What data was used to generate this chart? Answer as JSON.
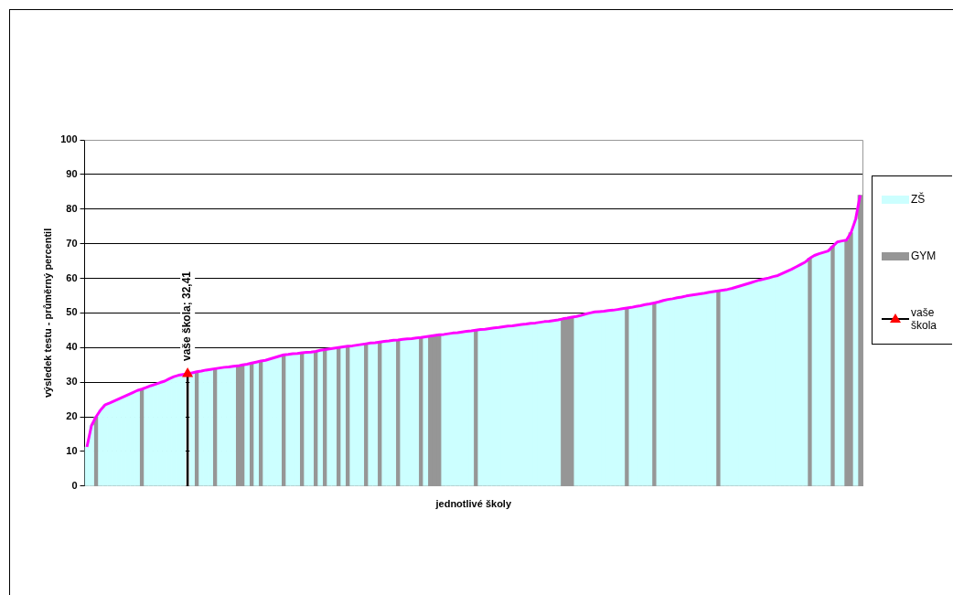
{
  "chart_data": {
    "type": "bar",
    "xlabel": "jednotlivé školy",
    "ylabel": "výsledek testu - průměrný percentil",
    "categories": [
      null,
      null,
      null,
      null,
      null,
      null,
      null,
      null,
      null,
      null,
      null,
      null,
      null,
      null,
      null,
      null,
      null,
      null,
      null,
      null,
      null,
      null,
      null,
      null,
      null,
      null,
      null,
      null,
      null,
      null,
      null,
      null,
      null,
      null,
      null,
      null,
      null,
      null,
      null,
      null,
      null,
      null,
      null,
      null,
      null,
      null,
      null,
      null,
      null,
      null,
      null,
      null,
      null,
      null,
      null,
      null,
      null,
      null,
      null,
      null,
      null,
      null,
      null,
      null,
      null,
      null,
      null,
      null,
      null,
      null,
      null,
      null,
      null,
      null,
      null,
      null,
      null,
      null,
      null,
      null,
      null,
      null,
      null,
      null,
      null,
      null,
      null,
      null,
      null,
      null,
      null,
      null,
      null,
      null,
      null,
      null,
      null,
      null,
      null,
      null,
      null,
      null,
      null,
      null,
      null,
      null,
      null,
      null,
      null,
      null,
      null,
      null,
      null,
      null,
      null,
      null,
      null,
      null,
      null,
      null,
      null,
      null,
      null,
      null,
      null,
      null,
      null,
      null,
      null,
      null,
      null,
      null,
      null,
      null,
      null,
      null,
      null,
      null,
      null,
      null,
      null,
      null,
      null,
      null,
      null,
      null,
      null,
      null,
      null,
      null,
      null,
      null,
      null,
      null,
      null,
      null,
      null,
      null,
      null,
      null,
      null,
      null,
      null,
      null,
      null,
      null,
      null,
      null,
      null,
      null
    ],
    "ylim": [
      0,
      100
    ],
    "yticks": [
      0,
      10,
      20,
      30,
      40,
      50,
      60,
      70,
      80,
      90,
      100
    ],
    "grid": "y",
    "tick_labels": "y",
    "legend": "right",
    "series": [
      {
        "name": "ZŠ",
        "color": "#ccffff",
        "values": [
          11.3,
          17.5,
          null,
          22,
          23.5,
          24,
          24.6,
          25.2,
          25.8,
          26.4,
          27,
          27.6,
          null,
          28.5,
          29,
          29.4,
          29.9,
          30.3,
          31,
          31.6,
          32,
          32.2,
          null,
          32.7,
          null,
          33.2,
          33.5,
          33.7,
          null,
          34.1,
          34.3,
          34.4,
          34.6,
          null,
          null,
          35.2,
          null,
          35.8,
          null,
          36.3,
          36.7,
          37.1,
          37.5,
          null,
          38,
          38.2,
          38.3,
          null,
          38.6,
          38.7,
          null,
          39.2,
          null,
          39.6,
          39.8,
          null,
          40.2,
          null,
          40.5,
          40.7,
          40.9,
          null,
          41.3,
          41.4,
          null,
          41.8,
          41.9,
          42.1,
          null,
          42.4,
          42.5,
          42.6,
          42.8,
          null,
          43.1,
          null,
          null,
          null,
          43.8,
          44,
          44.2,
          44.3,
          44.5,
          44.7,
          44.8,
          null,
          45.2,
          45.3,
          45.5,
          45.7,
          45.8,
          46,
          46.2,
          46.3,
          46.5,
          46.7,
          46.8,
          47,
          47.1,
          47.3,
          47.5,
          47.6,
          47.8,
          48,
          null,
          null,
          null,
          49,
          49.3,
          49.7,
          50,
          50.3,
          50.4,
          50.5,
          50.7,
          50.8,
          51,
          51.2,
          null,
          51.6,
          51.9,
          52.1,
          52.4,
          52.6,
          null,
          53.2,
          53.6,
          53.9,
          54.1,
          54.4,
          54.6,
          54.9,
          55.1,
          55.3,
          55.5,
          55.7,
          56,
          56.2,
          null,
          56.6,
          56.8,
          57.1,
          57.5,
          57.9,
          58.3,
          58.7,
          59.1,
          59.5,
          59.8,
          60.1,
          60.5,
          60.8,
          61.4,
          62,
          62.6,
          63.3,
          64,
          64.7,
          null,
          66.6,
          67.1,
          67.5,
          67.9,
          null,
          70.5,
          70.8,
          null,
          null,
          77,
          null
        ]
      },
      {
        "name": "GYM",
        "color": "#969696",
        "values": [
          null,
          null,
          20,
          null,
          null,
          null,
          null,
          null,
          null,
          null,
          null,
          null,
          28,
          null,
          null,
          null,
          null,
          null,
          null,
          null,
          null,
          null,
          null,
          null,
          33,
          null,
          null,
          null,
          33.9,
          null,
          null,
          null,
          null,
          34.7,
          35,
          null,
          35.5,
          null,
          36.1,
          null,
          null,
          null,
          null,
          37.9,
          null,
          null,
          null,
          38.5,
          null,
          null,
          38.9,
          null,
          39.4,
          null,
          null,
          40,
          null,
          40.4,
          null,
          null,
          null,
          41.1,
          null,
          null,
          41.6,
          null,
          null,
          null,
          42.2,
          null,
          null,
          null,
          null,
          42.9,
          null,
          43.3,
          43.5,
          43.7,
          null,
          null,
          null,
          null,
          null,
          null,
          null,
          45,
          null,
          null,
          null,
          null,
          null,
          null,
          null,
          null,
          null,
          null,
          null,
          null,
          null,
          null,
          null,
          null,
          null,
          null,
          48.3,
          48.5,
          48.8,
          null,
          null,
          null,
          null,
          null,
          null,
          null,
          null,
          null,
          null,
          null,
          51.4,
          null,
          null,
          null,
          null,
          null,
          52.9,
          null,
          null,
          null,
          null,
          null,
          null,
          null,
          null,
          null,
          null,
          null,
          null,
          null,
          56.4,
          null,
          null,
          null,
          null,
          null,
          null,
          null,
          null,
          null,
          null,
          null,
          null,
          null,
          null,
          null,
          null,
          null,
          null,
          null,
          65.8,
          null,
          null,
          null,
          null,
          69.2,
          null,
          null,
          71,
          73.2,
          null,
          84
        ]
      },
      {
        "type": "line",
        "color": "#ff00ff",
        "marker": "none",
        "values": [
          11.3,
          17.5,
          20,
          22,
          23.5,
          24,
          24.6,
          25.2,
          25.8,
          26.4,
          27,
          27.6,
          28,
          28.5,
          29,
          29.4,
          29.9,
          30.3,
          31,
          31.6,
          32,
          32.2,
          32.41,
          32.7,
          33,
          33.2,
          33.5,
          33.7,
          33.9,
          34.1,
          34.3,
          34.4,
          34.6,
          34.7,
          35,
          35.2,
          35.5,
          35.8,
          36.1,
          36.3,
          36.7,
          37.1,
          37.5,
          37.9,
          38,
          38.2,
          38.3,
          38.5,
          38.6,
          38.7,
          38.9,
          39.2,
          39.4,
          39.6,
          39.8,
          40,
          40.2,
          40.4,
          40.5,
          40.7,
          40.9,
          41.1,
          41.3,
          41.4,
          41.6,
          41.8,
          41.9,
          42.1,
          42.2,
          42.4,
          42.5,
          42.6,
          42.8,
          42.9,
          43.1,
          43.3,
          43.5,
          43.7,
          43.8,
          44,
          44.2,
          44.3,
          44.5,
          44.7,
          44.8,
          45,
          45.2,
          45.3,
          45.5,
          45.7,
          45.8,
          46,
          46.2,
          46.3,
          46.5,
          46.7,
          46.8,
          47,
          47.1,
          47.3,
          47.5,
          47.6,
          47.8,
          48,
          48.3,
          48.5,
          48.8,
          49,
          49.3,
          49.7,
          50,
          50.3,
          50.4,
          50.5,
          50.7,
          50.8,
          51,
          51.2,
          51.4,
          51.6,
          51.9,
          52.1,
          52.4,
          52.6,
          52.9,
          53.2,
          53.6,
          53.9,
          54.1,
          54.4,
          54.6,
          54.9,
          55.1,
          55.3,
          55.5,
          55.7,
          56,
          56.2,
          56.4,
          56.6,
          56.8,
          57.1,
          57.5,
          57.9,
          58.3,
          58.7,
          59.1,
          59.5,
          59.8,
          60.1,
          60.5,
          60.8,
          61.4,
          62,
          62.6,
          63.3,
          64,
          64.7,
          65.8,
          66.6,
          67.1,
          67.5,
          67.9,
          69.2,
          70.5,
          70.8,
          71,
          73.2,
          77,
          84
        ]
      },
      {
        "name": "vaše škola",
        "type": "scatter",
        "color": "#000000",
        "marker": "triangle",
        "values": [
          null,
          null,
          null,
          null,
          null,
          null,
          null,
          null,
          null,
          null,
          null,
          null,
          null,
          null,
          null,
          null,
          null,
          null,
          null,
          null,
          null,
          null,
          32.41,
          null,
          null,
          null,
          null,
          null,
          null,
          null,
          null,
          null,
          null,
          null,
          null,
          null,
          null,
          null,
          null,
          null,
          null,
          null,
          null,
          null,
          null,
          null,
          null,
          null,
          null,
          null,
          null,
          null,
          null,
          null,
          null,
          null,
          null,
          null,
          null,
          null,
          null,
          null,
          null,
          null,
          null,
          null,
          null,
          null,
          null,
          null,
          null,
          null,
          null,
          null,
          null,
          null,
          null,
          null,
          null,
          null,
          null,
          null,
          null,
          null,
          null,
          null,
          null,
          null,
          null,
          null,
          null,
          null,
          null,
          null,
          null,
          null,
          null,
          null,
          null,
          null,
          null,
          null,
          null,
          null,
          null,
          null,
          null,
          null,
          null,
          null,
          null,
          null,
          null,
          null,
          null,
          null,
          null,
          null,
          null,
          null,
          null,
          null,
          null,
          null,
          null,
          null,
          null,
          null,
          null,
          null,
          null,
          null,
          null,
          null,
          null,
          null,
          null,
          null,
          null,
          null,
          null,
          null,
          null,
          null,
          null,
          null,
          null,
          null,
          null,
          null,
          null,
          null,
          null,
          null,
          null,
          null,
          null,
          null,
          null,
          null,
          null,
          null,
          null,
          null,
          null,
          null,
          null,
          null,
          null,
          null
        ],
        "colors": [
          null,
          null,
          null,
          null,
          null,
          null,
          null,
          null,
          null,
          null,
          null,
          null,
          null,
          null,
          null,
          null,
          null,
          null,
          null,
          null,
          null,
          null,
          "#ff0000",
          null,
          null,
          null,
          null,
          null,
          null,
          null,
          null,
          null,
          null,
          null,
          null,
          null,
          null,
          null,
          null,
          null,
          null,
          null,
          null,
          null,
          null,
          null,
          null,
          null,
          null,
          null,
          null,
          null,
          null,
          null,
          null,
          null,
          null,
          null,
          null,
          null,
          null,
          null,
          null,
          null,
          null,
          null,
          null,
          null,
          null,
          null,
          null,
          null,
          null,
          null,
          null,
          null,
          null,
          null,
          null,
          null,
          null,
          null,
          null,
          null,
          null,
          null,
          null,
          null,
          null,
          null,
          null,
          null,
          null,
          null,
          null,
          null,
          null,
          null,
          null,
          null,
          null,
          null,
          null,
          null,
          null,
          null,
          null,
          null,
          null,
          null,
          null,
          null,
          null,
          null,
          null,
          null,
          null,
          null,
          null,
          null,
          null,
          null,
          null,
          null,
          null,
          null,
          null,
          null,
          null,
          null,
          null,
          null,
          null,
          null,
          null,
          null,
          null,
          null,
          null,
          null,
          null,
          null,
          null,
          null,
          null,
          null,
          null,
          null,
          null,
          null,
          null,
          null,
          null,
          null,
          null,
          null,
          null,
          null,
          null,
          null,
          null,
          null,
          null,
          null,
          null,
          null,
          null,
          null,
          null,
          null
        ],
        "errors": [
          null,
          null,
          null,
          null,
          null,
          null,
          null,
          null,
          null,
          null,
          null,
          null,
          null,
          null,
          null,
          null,
          null,
          null,
          null,
          null,
          null,
          null,
          [
            0,
            32.41
          ],
          null,
          null,
          null,
          null,
          null,
          null,
          null,
          null,
          null,
          null,
          null,
          null,
          null,
          null,
          null,
          null,
          null,
          null,
          null,
          null,
          null,
          null,
          null,
          null,
          null,
          null,
          null,
          null,
          null,
          null,
          null,
          null,
          null,
          null,
          null,
          null,
          null,
          null,
          null,
          null,
          null,
          null,
          null,
          null,
          null,
          null,
          null,
          null,
          null,
          null,
          null,
          null,
          null,
          null,
          null,
          null,
          null,
          null,
          null,
          null,
          null,
          null,
          null,
          null,
          null,
          null,
          null,
          null,
          null,
          null,
          null,
          null,
          null,
          null,
          null,
          null,
          null,
          null,
          null,
          null,
          null,
          null,
          null,
          null,
          null,
          null,
          null,
          null,
          null,
          null,
          null,
          null,
          null,
          null,
          null,
          null,
          null,
          null,
          null,
          null,
          null,
          null,
          null,
          null,
          null,
          null,
          null,
          null,
          null,
          null,
          null,
          null,
          null,
          null,
          null,
          null,
          null,
          null,
          null,
          null,
          null,
          null,
          null,
          null,
          null,
          null,
          null,
          null,
          null,
          null,
          null,
          null,
          null,
          null,
          null,
          null,
          null,
          null,
          null,
          null,
          null,
          null,
          null,
          null,
          null,
          null,
          null
        ],
        "value_labels": [
          null,
          null,
          null,
          null,
          null,
          null,
          null,
          null,
          null,
          null,
          null,
          null,
          null,
          null,
          null,
          null,
          null,
          null,
          null,
          null,
          null,
          null,
          "vaše škola; 32,41",
          null,
          null,
          null,
          null,
          null,
          null,
          null,
          null,
          null,
          null,
          null,
          null,
          null,
          null,
          null,
          null,
          null,
          null,
          null,
          null,
          null,
          null,
          null,
          null,
          null,
          null,
          null,
          null,
          null,
          null,
          null,
          null,
          null,
          null,
          null,
          null,
          null,
          null,
          null,
          null,
          null,
          null,
          null,
          null,
          null,
          null,
          null,
          null,
          null,
          null,
          null,
          null,
          null,
          null,
          null,
          null,
          null,
          null,
          null,
          null,
          null,
          null,
          null,
          null,
          null,
          null,
          null,
          null,
          null,
          null,
          null,
          null,
          null,
          null,
          null,
          null,
          null,
          null,
          null,
          null,
          null,
          null,
          null,
          null,
          null,
          null,
          null,
          null,
          null,
          null,
          null,
          null,
          null,
          null,
          null,
          null,
          null,
          null,
          null,
          null,
          null,
          null,
          null,
          null,
          null,
          null,
          null,
          null,
          null,
          null,
          null,
          null,
          null,
          null,
          null,
          null,
          null,
          null,
          null,
          null,
          null,
          null,
          null,
          null,
          null,
          null,
          null,
          null,
          null,
          null,
          null,
          null,
          null,
          null,
          null,
          null,
          null,
          null,
          null,
          null,
          null,
          null,
          null,
          null,
          null,
          null,
          null
        ]
      }
    ]
  }
}
